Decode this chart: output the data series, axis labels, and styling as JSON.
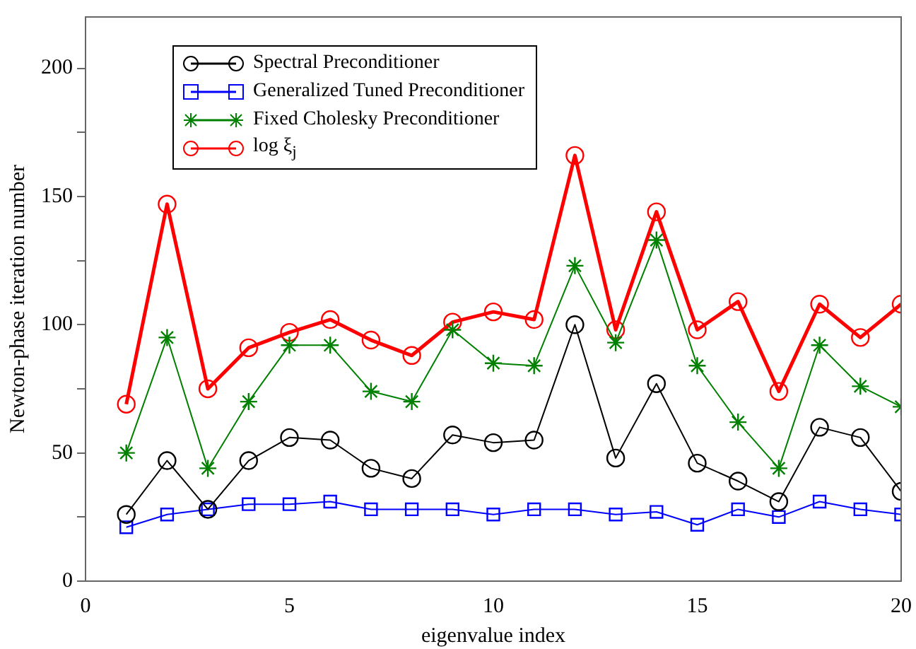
{
  "chart_data": {
    "type": "line",
    "xlabel": "eigenvalue index",
    "ylabel": "Newton-phase iteration number",
    "x": [
      1,
      2,
      3,
      4,
      5,
      6,
      7,
      8,
      9,
      10,
      11,
      12,
      13,
      14,
      15,
      16,
      17,
      18,
      19,
      20
    ],
    "series": [
      {
        "name": "Spectral Preconditioner",
        "color": "#000000",
        "marker": "circle",
        "values": [
          26,
          47,
          28,
          47,
          56,
          55,
          44,
          40,
          57,
          54,
          55,
          100,
          48,
          77,
          46,
          39,
          31,
          60,
          56,
          35
        ]
      },
      {
        "name": "Generalized Tuned Preconditioner",
        "color": "#0000ff",
        "marker": "square",
        "values": [
          21,
          26,
          28,
          30,
          30,
          31,
          28,
          28,
          28,
          26,
          28,
          28,
          26,
          27,
          22,
          28,
          25,
          31,
          28,
          26
        ]
      },
      {
        "name": "Fixed Cholesky Preconditioner",
        "color": "#008000",
        "marker": "cross",
        "values": [
          50,
          95,
          44,
          70,
          92,
          92,
          74,
          70,
          98,
          85,
          84,
          123,
          93,
          133,
          84,
          62,
          44,
          92,
          76,
          68
        ]
      },
      {
        "name": "log ξ$_{j}$",
        "color": "#ff0000",
        "marker": "circle",
        "values": [
          69,
          147,
          75,
          91,
          97,
          102,
          94,
          88,
          101,
          105,
          102,
          166,
          98,
          144,
          98,
          109,
          74,
          108,
          95,
          108
        ]
      }
    ],
    "xlim": [
      0,
      20
    ],
    "xticks": [
      0,
      5,
      10,
      15,
      20
    ],
    "ylim": [
      0,
      220
    ],
    "yticks": [
      0,
      50,
      100,
      150,
      200
    ],
    "grid": false,
    "legend": "top left"
  }
}
